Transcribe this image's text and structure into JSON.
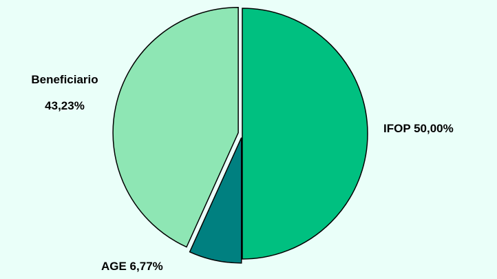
{
  "chart_data": {
    "type": "pie",
    "title": "",
    "slices": [
      {
        "label": "IFOP",
        "value": 50.0,
        "display": "IFOP 50,00%",
        "color": "#00c080",
        "exploded": false
      },
      {
        "label": "AGE",
        "value": 6.77,
        "display": "AGE 6,77%",
        "color": "#008080",
        "exploded": true
      },
      {
        "label": "Beneficiario",
        "value": 43.23,
        "display_lines": [
          "Beneficiario",
          "43,23%"
        ],
        "color": "#8ee6b4",
        "exploded": true
      }
    ],
    "start_angle": "12 o'clock",
    "direction": "clockwise",
    "legend": "none",
    "background_color": "#eafff9"
  }
}
